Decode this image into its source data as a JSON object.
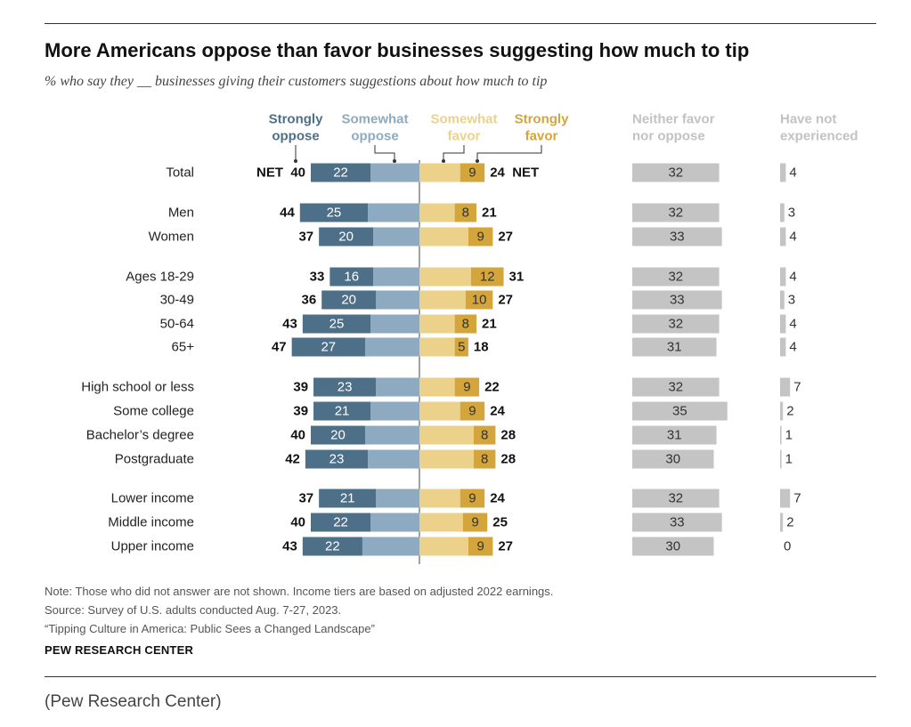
{
  "title": "More Americans oppose than favor businesses suggesting how much to tip",
  "subtitle": "% who say they __ businesses giving their customers suggestions about how much to tip",
  "colors": {
    "strongly_oppose": "#4e6f88",
    "somewhat_oppose": "#8eaac0",
    "somewhat_favor": "#ecd18a",
    "strongly_favor": "#d3a53a",
    "neither": "#c4c4c4",
    "not_experienced": "#c4c4c4"
  },
  "chart_data": {
    "type": "bar",
    "orientation": "horizontal",
    "stacking": "diverging",
    "column_headers": {
      "strongly_oppose": "Strongly oppose",
      "somewhat_oppose": "Somewhat oppose",
      "somewhat_favor": "Somewhat favor",
      "strongly_favor": "Strongly favor",
      "neither": "Neither favor nor oppose",
      "not_experienced": "Have not experienced"
    },
    "net_label": "NET",
    "categories": [
      "Total",
      "Men",
      "Women",
      "Ages 18-29",
      "30-49",
      "50-64",
      "65+",
      "High school or less",
      "Some college",
      "Bachelor’s degree",
      "Postgraduate",
      "Lower income",
      "Middle income",
      "Upper income"
    ],
    "rows": [
      {
        "label": "Total",
        "strongly_oppose": 22,
        "net_oppose": 40,
        "strongly_favor": 9,
        "net_favor": 24,
        "neither": 32,
        "not_experienced": 4
      },
      {
        "label": "Men",
        "strongly_oppose": 25,
        "net_oppose": 44,
        "strongly_favor": 8,
        "net_favor": 21,
        "neither": 32,
        "not_experienced": 3
      },
      {
        "label": "Women",
        "strongly_oppose": 20,
        "net_oppose": 37,
        "strongly_favor": 9,
        "net_favor": 27,
        "neither": 33,
        "not_experienced": 4
      },
      {
        "label": "Ages 18-29",
        "strongly_oppose": 16,
        "net_oppose": 33,
        "strongly_favor": 12,
        "net_favor": 31,
        "neither": 32,
        "not_experienced": 4
      },
      {
        "label": "30-49",
        "strongly_oppose": 20,
        "net_oppose": 36,
        "strongly_favor": 10,
        "net_favor": 27,
        "neither": 33,
        "not_experienced": 3
      },
      {
        "label": "50-64",
        "strongly_oppose": 25,
        "net_oppose": 43,
        "strongly_favor": 8,
        "net_favor": 21,
        "neither": 32,
        "not_experienced": 4
      },
      {
        "label": "65+",
        "strongly_oppose": 27,
        "net_oppose": 47,
        "strongly_favor": 5,
        "net_favor": 18,
        "neither": 31,
        "not_experienced": 4
      },
      {
        "label": "High school or less",
        "strongly_oppose": 23,
        "net_oppose": 39,
        "strongly_favor": 9,
        "net_favor": 22,
        "neither": 32,
        "not_experienced": 7
      },
      {
        "label": "Some college",
        "strongly_oppose": 21,
        "net_oppose": 39,
        "strongly_favor": 9,
        "net_favor": 24,
        "neither": 35,
        "not_experienced": 2
      },
      {
        "label": "Bachelor’s degree",
        "strongly_oppose": 20,
        "net_oppose": 40,
        "strongly_favor": 8,
        "net_favor": 28,
        "neither": 31,
        "not_experienced": 1
      },
      {
        "label": "Postgraduate",
        "strongly_oppose": 23,
        "net_oppose": 42,
        "strongly_favor": 8,
        "net_favor": 28,
        "neither": 30,
        "not_experienced": 1
      },
      {
        "label": "Lower income",
        "strongly_oppose": 21,
        "net_oppose": 37,
        "strongly_favor": 9,
        "net_favor": 24,
        "neither": 32,
        "not_experienced": 7
      },
      {
        "label": "Middle income",
        "strongly_oppose": 22,
        "net_oppose": 40,
        "strongly_favor": 9,
        "net_favor": 25,
        "neither": 33,
        "not_experienced": 2
      },
      {
        "label": "Upper income",
        "strongly_oppose": 22,
        "net_oppose": 43,
        "strongly_favor": 9,
        "net_favor": 27,
        "neither": 30,
        "not_experienced": 0
      }
    ]
  },
  "notes": {
    "note": "Note: Those who did not answer are not shown. Income tiers are based on adjusted 2022 earnings.",
    "source": "Source: Survey of U.S. adults conducted Aug. 7-27, 2023.",
    "report": "“Tipping Culture in America: Public Sees a Changed Landscape”"
  },
  "brand": "PEW RESEARCH CENTER",
  "caption": "(Pew Research Center)"
}
